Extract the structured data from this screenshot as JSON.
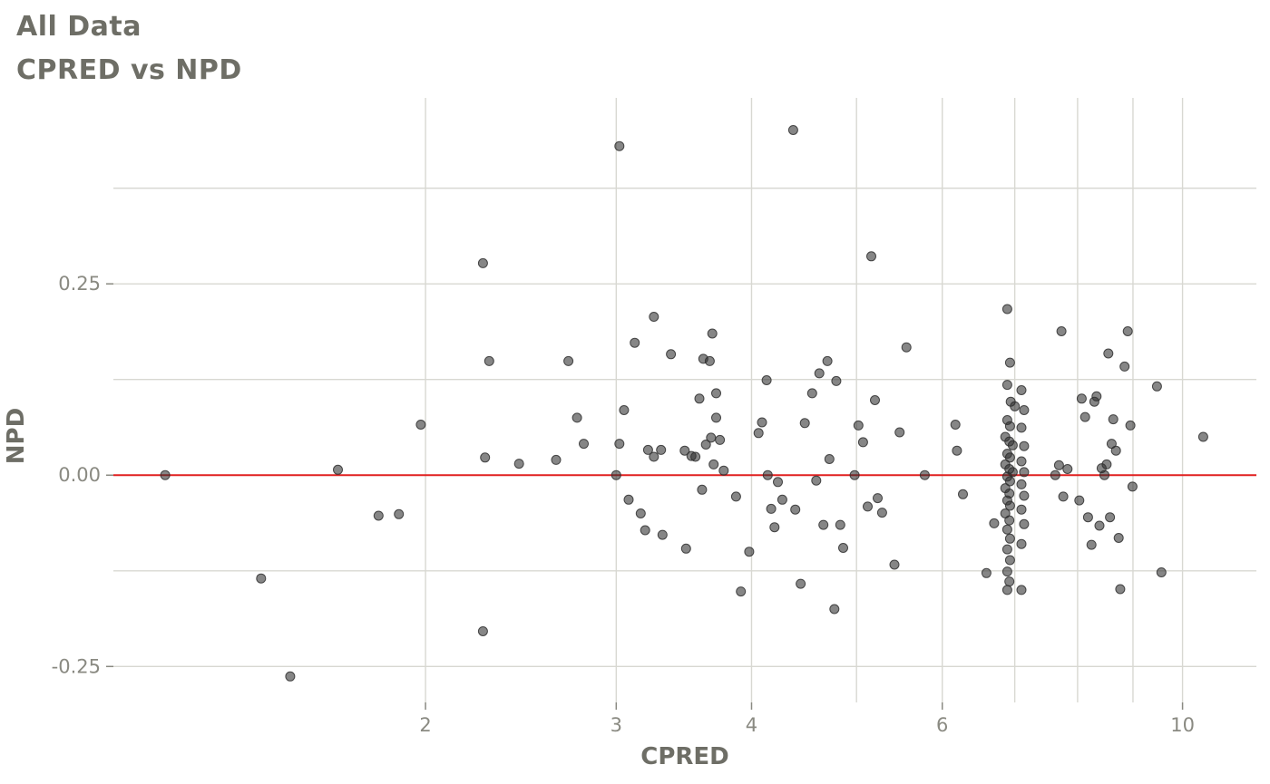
{
  "title": "All Data",
  "subtitle": "CPRED vs NPD",
  "chart_data": {
    "type": "scatter",
    "title": "All Data",
    "subtitle": "CPRED vs NPD",
    "xlabel": "CPRED",
    "ylabel": "NPD",
    "x_scale": "log10",
    "xlim": [
      1.03,
      11.7
    ],
    "ylim": [
      -0.297,
      0.493
    ],
    "x_ticks": [
      2,
      3,
      4,
      6,
      10
    ],
    "x_tick_labels": [
      "2",
      "3",
      "4",
      "6",
      "10"
    ],
    "x_gridlines": [
      2,
      3,
      4,
      5,
      6,
      7,
      8,
      9,
      10
    ],
    "y_ticks": [
      -0.25,
      0.0,
      0.25
    ],
    "y_tick_labels": [
      "-0.25",
      "0.00",
      "0.25"
    ],
    "y_gridlines": [
      -0.25,
      -0.125,
      0.0,
      0.125,
      0.25,
      0.375
    ],
    "grid": true,
    "legend": "none",
    "hline": {
      "y": 0.0,
      "color": "#e02020",
      "width": 2
    },
    "style": {
      "point_color": "#2e2e2e",
      "point_opacity": 0.58,
      "point_radius": 5,
      "grid_color": "#d8d8d2",
      "tick_color": "#8a8a82",
      "background": "#ffffff"
    },
    "points": [
      [
        1.15,
        0.0
      ],
      [
        1.41,
        -0.135
      ],
      [
        1.5,
        -0.263
      ],
      [
        1.66,
        0.007
      ],
      [
        1.81,
        -0.053
      ],
      [
        1.89,
        -0.051
      ],
      [
        1.98,
        0.066
      ],
      [
        2.26,
        0.277
      ],
      [
        2.26,
        -0.204
      ],
      [
        2.27,
        0.023
      ],
      [
        2.29,
        0.149
      ],
      [
        2.44,
        0.015
      ],
      [
        2.64,
        0.02
      ],
      [
        2.71,
        0.149
      ],
      [
        2.76,
        0.075
      ],
      [
        2.8,
        0.041
      ],
      [
        3.02,
        0.43
      ],
      [
        3.0,
        0.0
      ],
      [
        3.02,
        0.041
      ],
      [
        3.05,
        0.085
      ],
      [
        3.08,
        -0.032
      ],
      [
        3.12,
        0.173
      ],
      [
        3.16,
        -0.05
      ],
      [
        3.19,
        -0.072
      ],
      [
        3.21,
        0.033
      ],
      [
        3.25,
        0.024
      ],
      [
        3.25,
        0.207
      ],
      [
        3.3,
        0.033
      ],
      [
        3.31,
        -0.078
      ],
      [
        3.37,
        0.158
      ],
      [
        3.47,
        0.032
      ],
      [
        3.48,
        -0.096
      ],
      [
        3.52,
        0.025
      ],
      [
        3.55,
        0.024
      ],
      [
        3.58,
        0.1
      ],
      [
        3.6,
        -0.019
      ],
      [
        3.61,
        0.152
      ],
      [
        3.63,
        0.04
      ],
      [
        3.66,
        0.149
      ],
      [
        3.67,
        0.049
      ],
      [
        3.68,
        0.185
      ],
      [
        3.69,
        0.014
      ],
      [
        3.71,
        0.107
      ],
      [
        3.71,
        0.075
      ],
      [
        3.74,
        0.046
      ],
      [
        3.77,
        0.006
      ],
      [
        3.87,
        -0.028
      ],
      [
        3.91,
        -0.152
      ],
      [
        3.98,
        -0.1
      ],
      [
        4.06,
        0.055
      ],
      [
        4.09,
        0.069
      ],
      [
        4.13,
        0.124
      ],
      [
        4.14,
        0.0
      ],
      [
        4.17,
        -0.044
      ],
      [
        4.2,
        -0.068
      ],
      [
        4.23,
        -0.009
      ],
      [
        4.27,
        -0.032
      ],
      [
        4.37,
        0.451
      ],
      [
        4.39,
        -0.045
      ],
      [
        4.44,
        -0.142
      ],
      [
        4.48,
        0.068
      ],
      [
        4.55,
        0.107
      ],
      [
        4.59,
        -0.007
      ],
      [
        4.62,
        0.133
      ],
      [
        4.66,
        -0.065
      ],
      [
        4.7,
        0.149
      ],
      [
        4.72,
        0.021
      ],
      [
        4.77,
        -0.175
      ],
      [
        4.79,
        0.123
      ],
      [
        4.83,
        -0.065
      ],
      [
        4.86,
        -0.095
      ],
      [
        4.98,
        0.0
      ],
      [
        5.02,
        0.065
      ],
      [
        5.07,
        0.043
      ],
      [
        5.12,
        -0.041
      ],
      [
        5.16,
        0.286
      ],
      [
        5.2,
        0.098
      ],
      [
        5.23,
        -0.03
      ],
      [
        5.28,
        -0.049
      ],
      [
        5.42,
        -0.117
      ],
      [
        5.48,
        0.056
      ],
      [
        5.56,
        0.167
      ],
      [
        5.78,
        0.0
      ],
      [
        6.17,
        0.066
      ],
      [
        6.19,
        0.032
      ],
      [
        6.27,
        -0.025
      ],
      [
        6.59,
        -0.128
      ],
      [
        6.7,
        -0.063
      ],
      [
        6.89,
        0.217
      ],
      [
        6.93,
        0.147
      ],
      [
        6.89,
        0.118
      ],
      [
        6.94,
        0.096
      ],
      [
        7.0,
        0.09
      ],
      [
        6.89,
        0.072
      ],
      [
        6.93,
        0.064
      ],
      [
        6.86,
        0.05
      ],
      [
        6.92,
        0.044
      ],
      [
        6.97,
        0.039
      ],
      [
        6.89,
        0.028
      ],
      [
        6.93,
        0.023
      ],
      [
        6.86,
        0.014
      ],
      [
        6.92,
        0.008
      ],
      [
        6.97,
        0.004
      ],
      [
        6.89,
        -0.002
      ],
      [
        6.93,
        -0.008
      ],
      [
        6.86,
        -0.017
      ],
      [
        6.92,
        -0.024
      ],
      [
        6.89,
        -0.033
      ],
      [
        6.93,
        -0.04
      ],
      [
        6.86,
        -0.05
      ],
      [
        6.92,
        -0.059
      ],
      [
        6.89,
        -0.071
      ],
      [
        6.93,
        -0.083
      ],
      [
        6.89,
        -0.097
      ],
      [
        6.93,
        -0.111
      ],
      [
        6.89,
        -0.126
      ],
      [
        6.92,
        -0.139
      ],
      [
        6.89,
        -0.15
      ],
      [
        7.1,
        0.111
      ],
      [
        7.14,
        0.085
      ],
      [
        7.1,
        0.062
      ],
      [
        7.14,
        0.038
      ],
      [
        7.1,
        0.018
      ],
      [
        7.14,
        0.004
      ],
      [
        7.1,
        -0.012
      ],
      [
        7.14,
        -0.027
      ],
      [
        7.1,
        -0.045
      ],
      [
        7.14,
        -0.064
      ],
      [
        7.1,
        -0.09
      ],
      [
        7.1,
        -0.15
      ],
      [
        7.63,
        0.0
      ],
      [
        7.69,
        0.013
      ],
      [
        7.73,
        0.188
      ],
      [
        7.76,
        -0.028
      ],
      [
        7.83,
        0.008
      ],
      [
        8.03,
        -0.033
      ],
      [
        8.07,
        0.1
      ],
      [
        8.13,
        0.076
      ],
      [
        8.18,
        -0.055
      ],
      [
        8.24,
        -0.091
      ],
      [
        8.29,
        0.096
      ],
      [
        8.33,
        0.103
      ],
      [
        8.38,
        -0.066
      ],
      [
        8.42,
        0.009
      ],
      [
        8.47,
        0.0
      ],
      [
        8.51,
        0.014
      ],
      [
        8.54,
        0.159
      ],
      [
        8.57,
        -0.055
      ],
      [
        8.6,
        0.041
      ],
      [
        8.63,
        0.073
      ],
      [
        8.68,
        0.032
      ],
      [
        8.73,
        -0.082
      ],
      [
        8.76,
        -0.149
      ],
      [
        8.84,
        0.142
      ],
      [
        8.9,
        0.188
      ],
      [
        8.95,
        0.065
      ],
      [
        8.99,
        -0.015
      ],
      [
        9.47,
        0.116
      ],
      [
        9.56,
        -0.127
      ],
      [
        10.45,
        0.05
      ]
    ]
  }
}
